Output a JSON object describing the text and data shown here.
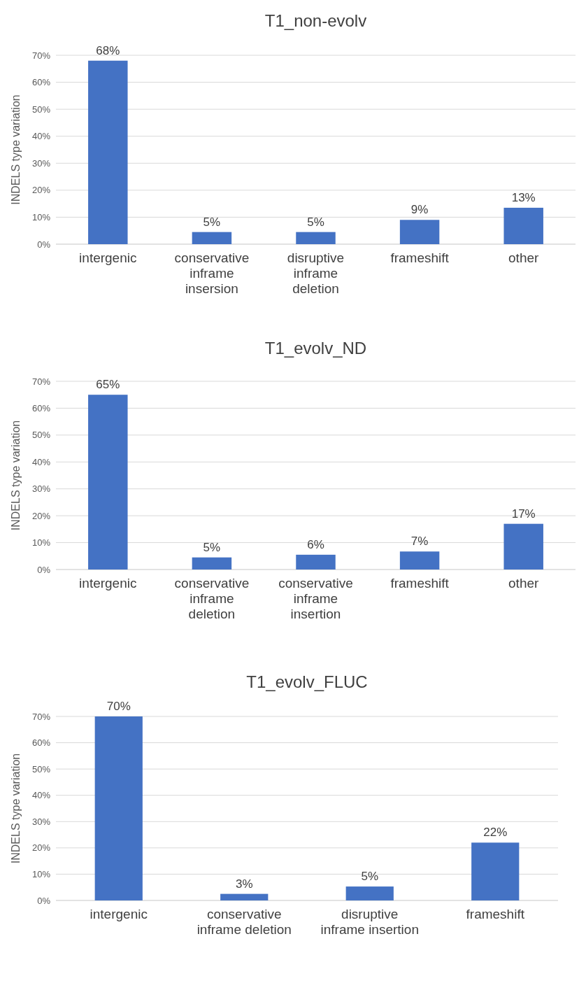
{
  "chart_data": [
    {
      "type": "bar",
      "title": "T1_non-evolv",
      "ylabel": "INDELS type variation",
      "categories": [
        "intergenic",
        "conservative inframe insersion",
        "disruptive inframe deletion",
        "frameshift",
        "other"
      ],
      "values": [
        68,
        4.5,
        4.5,
        9,
        13.5
      ],
      "value_labels": [
        "68%",
        "5%",
        "5%",
        "9%",
        "13%"
      ],
      "color": "#4472c4",
      "ylim": [
        0,
        70
      ],
      "yticks": [
        {
          "value": 0,
          "label": "0%"
        },
        {
          "value": 10,
          "label": "10%"
        },
        {
          "value": 20,
          "label": "20%"
        },
        {
          "value": 30,
          "label": "30%"
        },
        {
          "value": 40,
          "label": "40%"
        },
        {
          "value": 50,
          "label": "50%"
        },
        {
          "value": 60,
          "label": "60%"
        },
        {
          "value": 70,
          "label": "70%"
        }
      ],
      "grid": "y"
    },
    {
      "type": "bar",
      "title": "T1_evolv_ND",
      "ylabel": "INDELS type variation",
      "categories": [
        "intergenic",
        "conservative inframe deletion",
        "conservative inframe insertion",
        "frameshift",
        "other"
      ],
      "values": [
        65,
        4.5,
        5.5,
        6.7,
        17
      ],
      "value_labels": [
        "65%",
        "5%",
        "6%",
        "7%",
        "17%"
      ],
      "color": "#4472c4",
      "ylim": [
        0,
        70
      ],
      "yticks": [
        {
          "value": 0,
          "label": "0%"
        },
        {
          "value": 10,
          "label": "10%"
        },
        {
          "value": 20,
          "label": "20%"
        },
        {
          "value": 30,
          "label": "30%"
        },
        {
          "value": 40,
          "label": "40%"
        },
        {
          "value": 50,
          "label": "50%"
        },
        {
          "value": 60,
          "label": "60%"
        },
        {
          "value": 70,
          "label": "70%"
        }
      ],
      "grid": "y"
    },
    {
      "type": "bar",
      "title": "T1_evolv_FLUC",
      "ylabel": "INDELS type variation",
      "categories": [
        "intergenic",
        "conservative inframe deletion",
        "disruptive inframe insertion",
        "frameshift"
      ],
      "values": [
        70,
        2.5,
        5.3,
        22
      ],
      "value_labels": [
        "70%",
        "3%",
        "5%",
        "22%"
      ],
      "color": "#4472c4",
      "ylim": [
        0,
        70
      ],
      "yticks": [
        {
          "value": 0,
          "label": "0%"
        },
        {
          "value": 10,
          "label": "10%"
        },
        {
          "value": 20,
          "label": "20%"
        },
        {
          "value": 30,
          "label": "30%"
        },
        {
          "value": 40,
          "label": "40%"
        },
        {
          "value": 50,
          "label": "50%"
        },
        {
          "value": 60,
          "label": "60%"
        },
        {
          "value": 70,
          "label": "70%"
        }
      ],
      "grid": "y"
    }
  ]
}
